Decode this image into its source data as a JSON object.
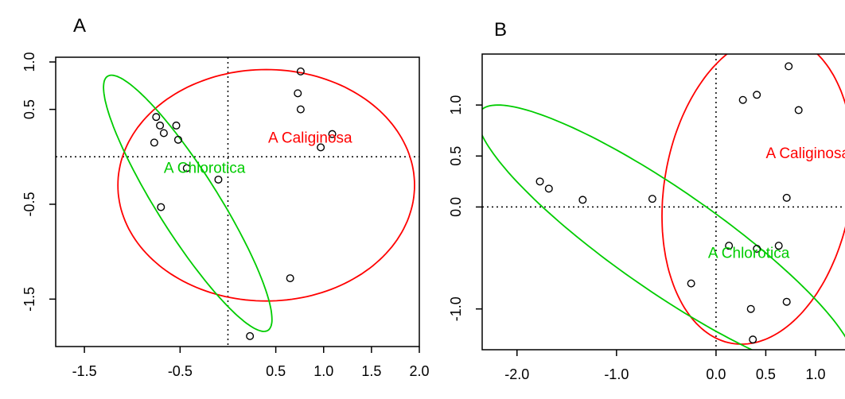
{
  "chart_data": [
    {
      "type": "scatter",
      "panel_label": "A",
      "xlim": [
        -1.8,
        2.0
      ],
      "ylim": [
        -2.0,
        1.05
      ],
      "x_ticks": [
        -1.5,
        -0.5,
        0.5,
        1.0,
        1.5,
        2.0
      ],
      "x_tick_labels": [
        "-1.5",
        "-0.5",
        "0.5",
        "1.0",
        "1.5",
        "2.0"
      ],
      "y_ticks": [
        1.0,
        0.5,
        -0.5,
        -1.5
      ],
      "y_tick_labels": [
        "1.0",
        "0.5",
        "-0.5",
        "-1.5"
      ],
      "reference_lines": {
        "x": 0,
        "y": 0,
        "style": "dotted"
      },
      "points": [
        {
          "x": -0.75,
          "y": 0.42
        },
        {
          "x": -0.71,
          "y": 0.33
        },
        {
          "x": -0.67,
          "y": 0.25
        },
        {
          "x": -0.54,
          "y": 0.33
        },
        {
          "x": -0.52,
          "y": 0.18
        },
        {
          "x": -0.77,
          "y": 0.15
        },
        {
          "x": -0.43,
          "y": -0.12
        },
        {
          "x": -0.1,
          "y": -0.24
        },
        {
          "x": -0.7,
          "y": -0.53
        },
        {
          "x": 0.76,
          "y": 0.9
        },
        {
          "x": 0.73,
          "y": 0.67
        },
        {
          "x": 0.76,
          "y": 0.5
        },
        {
          "x": 1.09,
          "y": 0.24
        },
        {
          "x": 0.97,
          "y": 0.1
        },
        {
          "x": 0.65,
          "y": -1.28
        },
        {
          "x": 0.23,
          "y": -1.89
        }
      ],
      "ellipses": [
        {
          "name": "A Caliginosa",
          "color": "#ff0000",
          "cx": 0.4,
          "cy": -0.3,
          "rx": 1.55,
          "ry": 1.22,
          "angle_deg": 0
        },
        {
          "name": "A Chlorotica",
          "color": "#00cc00",
          "cx": -0.42,
          "cy": -0.49,
          "rx": 0.32,
          "ry": 1.58,
          "angle_deg": 32
        }
      ],
      "labels": [
        {
          "text": "A Caliginosa",
          "color": "#ff0000",
          "x": 0.42,
          "y": 0.15
        },
        {
          "text": "A Chlorotica",
          "color": "#00cc00",
          "x": -0.67,
          "y": -0.17
        }
      ]
    },
    {
      "type": "scatter",
      "panel_label": "B",
      "xlim": [
        -2.35,
        1.4
      ],
      "ylim": [
        -1.4,
        1.5
      ],
      "x_ticks": [
        -2.0,
        -1.0,
        0.0,
        0.5,
        1.0
      ],
      "x_tick_labels": [
        "-2.0",
        "-1.0",
        "0.0",
        "0.5",
        "1.0"
      ],
      "y_ticks": [
        1.0,
        0.5,
        0.0,
        -1.0
      ],
      "y_tick_labels": [
        "1.0",
        "0.5",
        "0.0",
        "-1.0"
      ],
      "reference_lines": {
        "x": 0,
        "y": 0,
        "style": "dotted"
      },
      "points": [
        {
          "x": 0.73,
          "y": 1.38
        },
        {
          "x": 0.27,
          "y": 1.05
        },
        {
          "x": 0.41,
          "y": 1.1
        },
        {
          "x": 0.83,
          "y": 0.95
        },
        {
          "x": -1.77,
          "y": 0.25
        },
        {
          "x": -1.68,
          "y": 0.18
        },
        {
          "x": -1.34,
          "y": 0.07
        },
        {
          "x": -0.64,
          "y": 0.08
        },
        {
          "x": 0.71,
          "y": 0.09
        },
        {
          "x": 0.13,
          "y": -0.38
        },
        {
          "x": 0.41,
          "y": -0.41
        },
        {
          "x": 0.63,
          "y": -0.38
        },
        {
          "x": -0.25,
          "y": -0.75
        },
        {
          "x": 0.35,
          "y": -1.0
        },
        {
          "x": 0.71,
          "y": -0.93
        },
        {
          "x": 0.37,
          "y": -1.3
        }
      ],
      "ellipses": [
        {
          "name": "A Caliginosa",
          "color": "#ff0000",
          "cx": 0.42,
          "cy": 0.17,
          "rx": 0.94,
          "ry": 1.53,
          "angle_deg": -10
        },
        {
          "name": "A Chlorotica",
          "color": "#00cc00",
          "cx": -0.5,
          "cy": -0.33,
          "rx": 0.5,
          "ry": 2.26,
          "angle_deg": 56
        }
      ],
      "labels": [
        {
          "text": "A Caliginosa",
          "color": "#ff0000",
          "x": 0.5,
          "y": 0.48
        },
        {
          "text": "A Chlorotica",
          "color": "#00cc00",
          "x": -0.08,
          "y": -0.5
        }
      ]
    }
  ]
}
